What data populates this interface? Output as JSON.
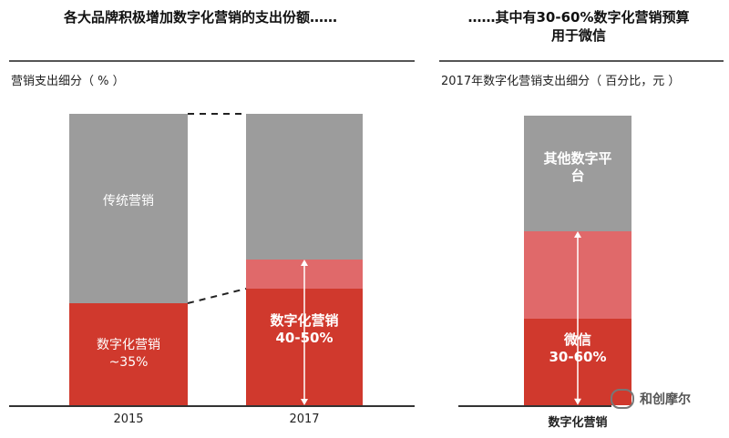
{
  "left_panel": {
    "title": "各大品牌积极增加数字化营销的支出份额……",
    "subtitle": "营销支出细分（ % ）"
  },
  "right_panel": {
    "title_line1": "……其中有30-60%数字化营销预算",
    "title_line2": "用于微信",
    "subtitle": "2017年数字化营销支出细分（ 百分比，元 ）"
  },
  "watermark": {
    "text": "和创摩尔",
    "icon": "wechat-icon"
  },
  "colors": {
    "gray": "#9c9c9c",
    "red": "#d0392d",
    "light_red": "#e0696a",
    "axis": "#333333"
  },
  "chart_data": [
    {
      "type": "bar",
      "stacked": true,
      "categories": [
        "2015",
        "2017"
      ],
      "ylim": [
        0,
        100
      ],
      "bars": [
        {
          "category": "2015",
          "segments": [
            {
              "name": "数字化营销",
              "label_line1": "数字化营销",
              "label_line2": "~35%",
              "from": 0,
              "to": 35,
              "color": "#d0392d"
            },
            {
              "name": "传统营销",
              "label_line1": "传统营销",
              "label_line2": "",
              "from": 35,
              "to": 100,
              "color": "#9c9c9c"
            }
          ]
        },
        {
          "category": "2017",
          "segments": [
            {
              "name": "数字化营销",
              "label_line1": "数字化营销",
              "label_line2": "40-50%",
              "from": 0,
              "to": 40,
              "color": "#d0392d"
            },
            {
              "name": "range",
              "label_line1": "",
              "label_line2": "",
              "from": 40,
              "to": 50,
              "color": "#e0696a"
            },
            {
              "name": "other",
              "label_line1": "",
              "label_line2": "",
              "from": 50,
              "to": 100,
              "color": "#9c9c9c"
            }
          ]
        }
      ]
    },
    {
      "type": "bar",
      "stacked": true,
      "categories": [
        "数字化营销"
      ],
      "ylim": [
        0,
        100
      ],
      "bars": [
        {
          "category": "数字化营销",
          "segments": [
            {
              "name": "微信",
              "label_line1": "微信",
              "label_line2": "30-60%",
              "from": 0,
              "to": 30,
              "color": "#d0392d"
            },
            {
              "name": "range",
              "label_line1": "",
              "label_line2": "",
              "from": 30,
              "to": 60,
              "color": "#e0696a"
            },
            {
              "name": "其他数字平台",
              "label_line1": "其他数字平",
              "label_line2": "台",
              "from": 60,
              "to": 100,
              "color": "#9c9c9c"
            }
          ]
        }
      ]
    }
  ]
}
